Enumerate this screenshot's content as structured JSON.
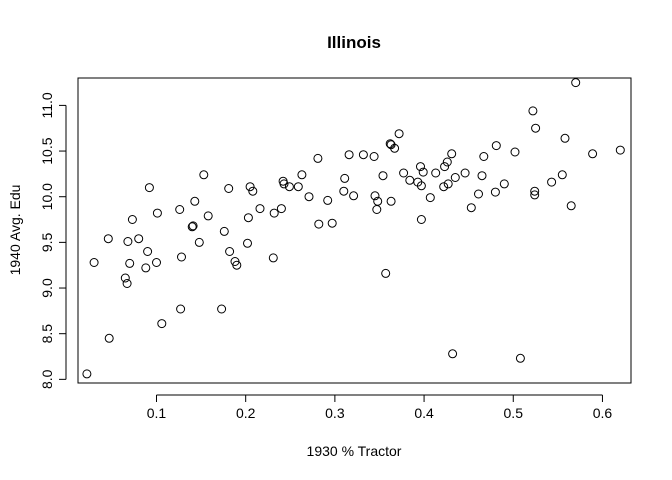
{
  "chart_data": {
    "type": "scatter",
    "title": "Illinois",
    "xlabel": "1930 % Tractor",
    "ylabel": "1940 Avg. Edu",
    "xlim": [
      0.012,
      0.632
    ],
    "ylim": [
      7.96,
      11.3
    ],
    "xticks": [
      0.1,
      0.2,
      0.3,
      0.4,
      0.5,
      0.6
    ],
    "xtick_labels": [
      "0.1",
      "0.2",
      "0.3",
      "0.4",
      "0.5",
      "0.6"
    ],
    "yticks": [
      8.0,
      8.5,
      9.0,
      9.5,
      10.0,
      10.5,
      11.0
    ],
    "ytick_labels": [
      "8.0",
      "8.5",
      "9.0",
      "9.5",
      "10.0",
      "10.5",
      "11.0"
    ],
    "grid": false,
    "legend": "none",
    "points": [
      {
        "x": 0.022,
        "y": 8.06
      },
      {
        "x": 0.03,
        "y": 9.28
      },
      {
        "x": 0.046,
        "y": 9.54
      },
      {
        "x": 0.047,
        "y": 8.45
      },
      {
        "x": 0.065,
        "y": 9.11
      },
      {
        "x": 0.067,
        "y": 9.05
      },
      {
        "x": 0.068,
        "y": 9.51
      },
      {
        "x": 0.07,
        "y": 9.27
      },
      {
        "x": 0.073,
        "y": 9.75
      },
      {
        "x": 0.08,
        "y": 9.54
      },
      {
        "x": 0.088,
        "y": 9.22
      },
      {
        "x": 0.09,
        "y": 9.4
      },
      {
        "x": 0.092,
        "y": 10.1
      },
      {
        "x": 0.1,
        "y": 9.28
      },
      {
        "x": 0.101,
        "y": 9.82
      },
      {
        "x": 0.106,
        "y": 8.61
      },
      {
        "x": 0.126,
        "y": 9.86
      },
      {
        "x": 0.127,
        "y": 8.77
      },
      {
        "x": 0.128,
        "y": 9.34
      },
      {
        "x": 0.14,
        "y": 9.67
      },
      {
        "x": 0.141,
        "y": 9.68
      },
      {
        "x": 0.143,
        "y": 9.95
      },
      {
        "x": 0.148,
        "y": 9.5
      },
      {
        "x": 0.153,
        "y": 10.24
      },
      {
        "x": 0.158,
        "y": 9.79
      },
      {
        "x": 0.173,
        "y": 8.77
      },
      {
        "x": 0.176,
        "y": 9.62
      },
      {
        "x": 0.181,
        "y": 10.09
      },
      {
        "x": 0.182,
        "y": 9.4
      },
      {
        "x": 0.188,
        "y": 9.29
      },
      {
        "x": 0.19,
        "y": 9.25
      },
      {
        "x": 0.202,
        "y": 9.49
      },
      {
        "x": 0.203,
        "y": 9.77
      },
      {
        "x": 0.205,
        "y": 10.11
      },
      {
        "x": 0.208,
        "y": 10.06
      },
      {
        "x": 0.216,
        "y": 9.87
      },
      {
        "x": 0.231,
        "y": 9.33
      },
      {
        "x": 0.232,
        "y": 9.82
      },
      {
        "x": 0.24,
        "y": 9.87
      },
      {
        "x": 0.242,
        "y": 10.17
      },
      {
        "x": 0.243,
        "y": 10.14
      },
      {
        "x": 0.249,
        "y": 10.11
      },
      {
        "x": 0.259,
        "y": 10.11
      },
      {
        "x": 0.263,
        "y": 10.24
      },
      {
        "x": 0.271,
        "y": 10.0
      },
      {
        "x": 0.281,
        "y": 10.42
      },
      {
        "x": 0.282,
        "y": 9.7
      },
      {
        "x": 0.292,
        "y": 9.96
      },
      {
        "x": 0.297,
        "y": 9.71
      },
      {
        "x": 0.31,
        "y": 10.06
      },
      {
        "x": 0.311,
        "y": 10.2
      },
      {
        "x": 0.316,
        "y": 10.46
      },
      {
        "x": 0.321,
        "y": 10.01
      },
      {
        "x": 0.332,
        "y": 10.46
      },
      {
        "x": 0.344,
        "y": 10.44
      },
      {
        "x": 0.345,
        "y": 10.01
      },
      {
        "x": 0.347,
        "y": 9.86
      },
      {
        "x": 0.348,
        "y": 9.95
      },
      {
        "x": 0.354,
        "y": 10.23
      },
      {
        "x": 0.357,
        "y": 9.16
      },
      {
        "x": 0.362,
        "y": 10.58
      },
      {
        "x": 0.363,
        "y": 10.57
      },
      {
        "x": 0.363,
        "y": 9.95
      },
      {
        "x": 0.367,
        "y": 10.53
      },
      {
        "x": 0.372,
        "y": 10.69
      },
      {
        "x": 0.377,
        "y": 10.26
      },
      {
        "x": 0.384,
        "y": 10.18
      },
      {
        "x": 0.393,
        "y": 10.16
      },
      {
        "x": 0.396,
        "y": 10.33
      },
      {
        "x": 0.397,
        "y": 10.12
      },
      {
        "x": 0.397,
        "y": 9.75
      },
      {
        "x": 0.399,
        "y": 10.27
      },
      {
        "x": 0.407,
        "y": 9.99
      },
      {
        "x": 0.413,
        "y": 10.26
      },
      {
        "x": 0.422,
        "y": 10.11
      },
      {
        "x": 0.423,
        "y": 10.33
      },
      {
        "x": 0.426,
        "y": 10.38
      },
      {
        "x": 0.427,
        "y": 10.14
      },
      {
        "x": 0.431,
        "y": 10.47
      },
      {
        "x": 0.432,
        "y": 8.28
      },
      {
        "x": 0.435,
        "y": 10.21
      },
      {
        "x": 0.446,
        "y": 10.26
      },
      {
        "x": 0.453,
        "y": 9.88
      },
      {
        "x": 0.461,
        "y": 10.03
      },
      {
        "x": 0.465,
        "y": 10.23
      },
      {
        "x": 0.467,
        "y": 10.44
      },
      {
        "x": 0.48,
        "y": 10.05
      },
      {
        "x": 0.481,
        "y": 10.56
      },
      {
        "x": 0.49,
        "y": 10.14
      },
      {
        "x": 0.502,
        "y": 10.49
      },
      {
        "x": 0.508,
        "y": 8.23
      },
      {
        "x": 0.522,
        "y": 10.94
      },
      {
        "x": 0.524,
        "y": 10.02
      },
      {
        "x": 0.524,
        "y": 10.06
      },
      {
        "x": 0.525,
        "y": 10.75
      },
      {
        "x": 0.543,
        "y": 10.16
      },
      {
        "x": 0.555,
        "y": 10.24
      },
      {
        "x": 0.558,
        "y": 10.64
      },
      {
        "x": 0.565,
        "y": 9.9
      },
      {
        "x": 0.57,
        "y": 11.25
      },
      {
        "x": 0.589,
        "y": 10.47
      },
      {
        "x": 0.62,
        "y": 10.51
      }
    ]
  }
}
